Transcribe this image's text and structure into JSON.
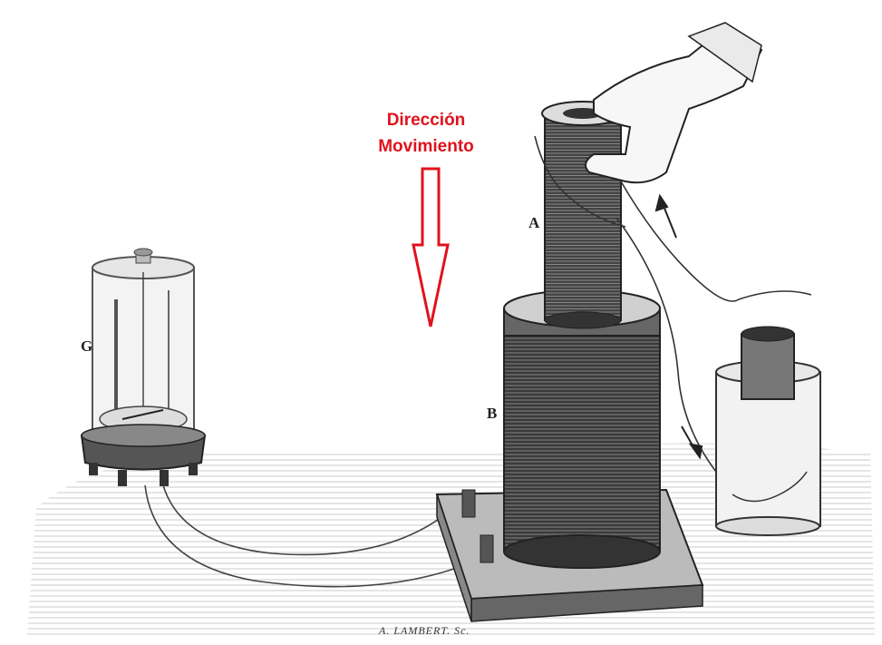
{
  "annotation": {
    "line1": "Dirección",
    "line2": "Movimiento",
    "color": "#e0121d"
  },
  "labels": {
    "coil_a": "A",
    "coil_b": "B",
    "galvanometer": "G"
  },
  "engraver_signature": "A. LAMBERT. Sc.",
  "icons": {
    "arrow_direction": "down-arrow-outline-icon",
    "current_arrows": "current-arrow-icon"
  }
}
